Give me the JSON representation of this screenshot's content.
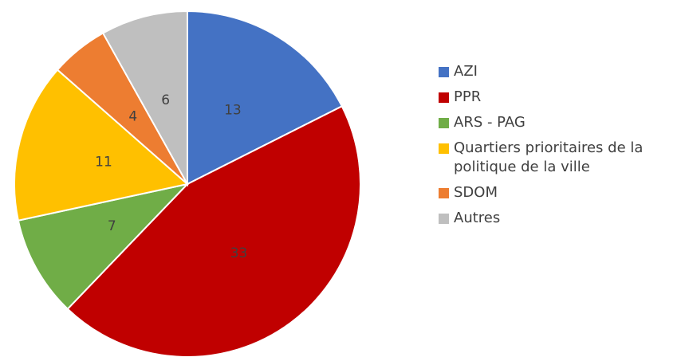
{
  "chart_data": {
    "type": "pie",
    "categories": [
      "AZI",
      "PPR",
      "ARS - PAG",
      "Quartiers prioritaires de la politique de la ville",
      "SDOM",
      "Autres"
    ],
    "values": [
      13,
      33,
      7,
      11,
      4,
      6
    ],
    "colors": [
      "#4472c4",
      "#c00000",
      "#70ad47",
      "#ffc000",
      "#ed7d31",
      "#bfbfbf"
    ]
  }
}
